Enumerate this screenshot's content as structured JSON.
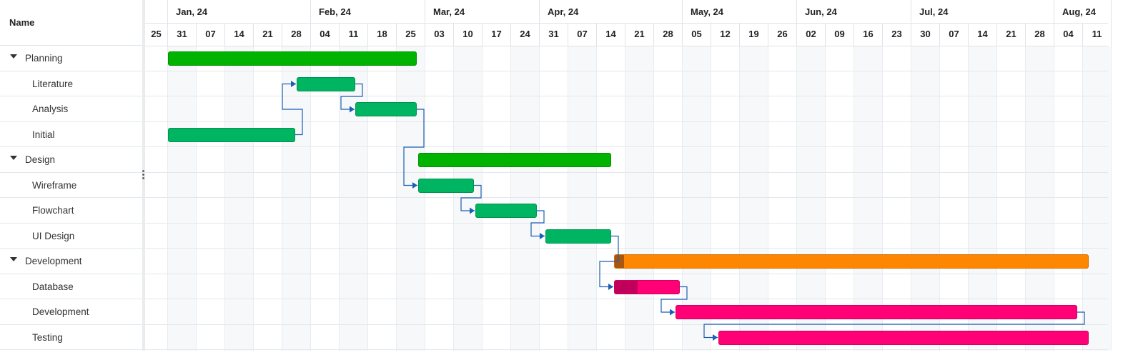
{
  "grid": {
    "header_name": "Name",
    "rows": [
      {
        "label": "Planning",
        "type": "parent"
      },
      {
        "label": "Literature",
        "type": "child"
      },
      {
        "label": "Analysis",
        "type": "child"
      },
      {
        "label": "Initial",
        "type": "child"
      },
      {
        "label": "Design",
        "type": "parent"
      },
      {
        "label": "Wireframe",
        "type": "child"
      },
      {
        "label": "Flowchart",
        "type": "child"
      },
      {
        "label": "UI Design",
        "type": "child"
      },
      {
        "label": "Development",
        "type": "parent"
      },
      {
        "label": "Database",
        "type": "child"
      },
      {
        "label": "Development",
        "type": "child"
      },
      {
        "label": "Testing",
        "type": "child"
      }
    ]
  },
  "timeline": {
    "months": [
      "Jan, 24",
      "Feb, 24",
      "Mar, 24",
      "Apr, 24",
      "May, 24",
      "Jun, 24",
      "Jul, 24",
      "Aug, 24"
    ],
    "weeks": [
      "25",
      "31",
      "07",
      "14",
      "21",
      "28",
      "04",
      "11",
      "18",
      "25",
      "03",
      "10",
      "17",
      "24",
      "31",
      "07",
      "14",
      "21",
      "28",
      "05",
      "12",
      "19",
      "26",
      "02",
      "09",
      "16",
      "23",
      "30",
      "07",
      "14",
      "21",
      "28",
      "04",
      "11"
    ]
  },
  "colors": {
    "parent_green": "#00b300",
    "child_green": "#00b561",
    "orange": "#ff8600",
    "orange_progress": "#a8570e",
    "pink": "#ff0077",
    "pink_progress": "#c0005a",
    "link": "#1a5fb4"
  },
  "tasks": [
    {
      "row": 0,
      "start_week": 1,
      "end_week": 9.7,
      "color": "#00b300",
      "progress": 0
    },
    {
      "row": 1,
      "start_week": 5.5,
      "end_week": 7.55,
      "color": "#00b561",
      "progress": 0
    },
    {
      "row": 2,
      "start_week": 7.55,
      "end_week": 9.7,
      "color": "#00b561",
      "progress": 0
    },
    {
      "row": 3,
      "start_week": 1,
      "end_week": 5.45,
      "color": "#00b561",
      "progress": 0
    },
    {
      "row": 4,
      "start_week": 9.75,
      "end_week": 16.5,
      "color": "#00b300",
      "progress": 0
    },
    {
      "row": 5,
      "start_week": 9.75,
      "end_week": 11.7,
      "color": "#00b561",
      "progress": 0
    },
    {
      "row": 6,
      "start_week": 11.75,
      "end_week": 13.9,
      "color": "#00b561",
      "progress": 0
    },
    {
      "row": 7,
      "start_week": 14.2,
      "end_week": 16.5,
      "color": "#00b561",
      "progress": 0
    },
    {
      "row": 8,
      "start_week": 16.6,
      "end_week": 33.2,
      "color": "#ff8600",
      "progress": 0.02
    },
    {
      "row": 9,
      "start_week": 16.6,
      "end_week": 18.9,
      "color": "#ff0077",
      "progress": 0.35
    },
    {
      "row": 10,
      "start_week": 18.75,
      "end_week": 32.8,
      "color": "#ff0077",
      "progress": 0
    },
    {
      "row": 11,
      "start_week": 20.25,
      "end_week": 33.2,
      "color": "#ff0077",
      "progress": 0
    }
  ],
  "links": [
    {
      "from": 3,
      "to": 1
    },
    {
      "from": 1,
      "to": 2
    },
    {
      "from": 2,
      "to": 5
    },
    {
      "from": 5,
      "to": 6
    },
    {
      "from": 6,
      "to": 7
    },
    {
      "from": 7,
      "to": 9
    },
    {
      "from": 9,
      "to": 10
    },
    {
      "from": 10,
      "to": 11
    }
  ]
}
